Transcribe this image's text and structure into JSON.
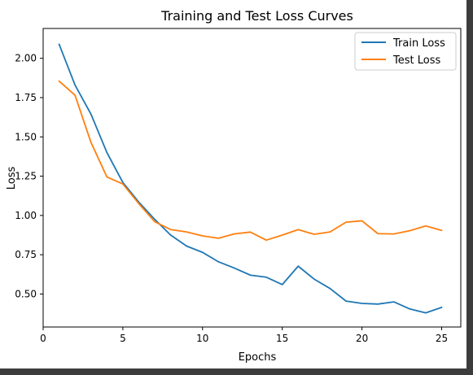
{
  "chart_data": {
    "type": "line",
    "title": "Training and Test Loss Curves",
    "xlabel": "Epochs",
    "ylabel": "Loss",
    "xlim": [
      0,
      26.2
    ],
    "ylim": [
      0.29,
      2.19
    ],
    "x_ticks": [
      0,
      5,
      10,
      15,
      20,
      25
    ],
    "y_ticks": [
      0.5,
      0.75,
      1.0,
      1.25,
      1.5,
      1.75,
      2.0
    ],
    "x_tick_labels": [
      "0",
      "5",
      "10",
      "15",
      "20",
      "25"
    ],
    "y_tick_labels": [
      "0.50",
      "0.75",
      "1.00",
      "1.25",
      "1.50",
      "1.75",
      "2.00"
    ],
    "legend_position": "top-right",
    "grid": false,
    "x": [
      1,
      2,
      3,
      4,
      5,
      6,
      7,
      8,
      9,
      10,
      11,
      12,
      13,
      14,
      15,
      16,
      17,
      18,
      19,
      20,
      21,
      22,
      23,
      24,
      25
    ],
    "series": [
      {
        "name": "Train Loss",
        "color": "#1f77b4",
        "values": [
          2.09,
          1.83,
          1.645,
          1.4,
          1.21,
          1.085,
          0.975,
          0.875,
          0.805,
          0.765,
          0.705,
          0.665,
          0.62,
          0.607,
          0.56,
          0.677,
          0.595,
          0.535,
          0.455,
          0.44,
          0.436,
          0.45,
          0.405,
          0.38,
          0.415
        ]
      },
      {
        "name": "Test Loss",
        "color": "#ff7f0e",
        "values": [
          1.855,
          1.765,
          1.465,
          1.245,
          1.2,
          1.075,
          0.96,
          0.91,
          0.895,
          0.87,
          0.855,
          0.883,
          0.894,
          0.843,
          0.875,
          0.91,
          0.88,
          0.895,
          0.957,
          0.966,
          0.884,
          0.882,
          0.903,
          0.933,
          0.905
        ]
      }
    ]
  }
}
